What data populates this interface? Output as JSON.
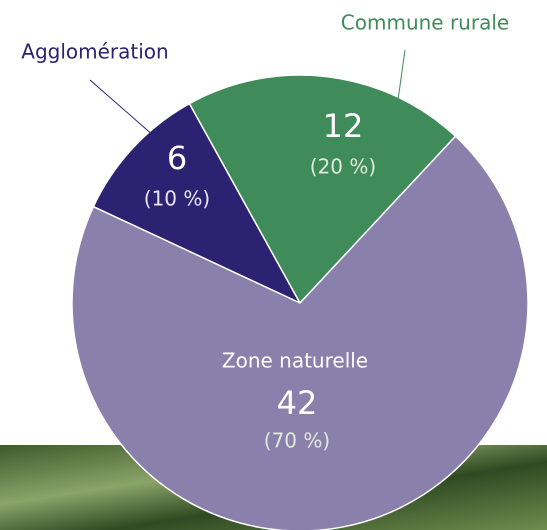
{
  "chart_data": {
    "type": "pie",
    "categories": [
      "Agglomération",
      "Commune rurale",
      "Zone naturelle"
    ],
    "values": [
      6,
      12,
      42
    ],
    "percent_labels": [
      "(10 %)",
      "(20 %)",
      "(70 %)"
    ],
    "colors": [
      "#2b2371",
      "#408b5a",
      "#8a80ac"
    ]
  }
}
